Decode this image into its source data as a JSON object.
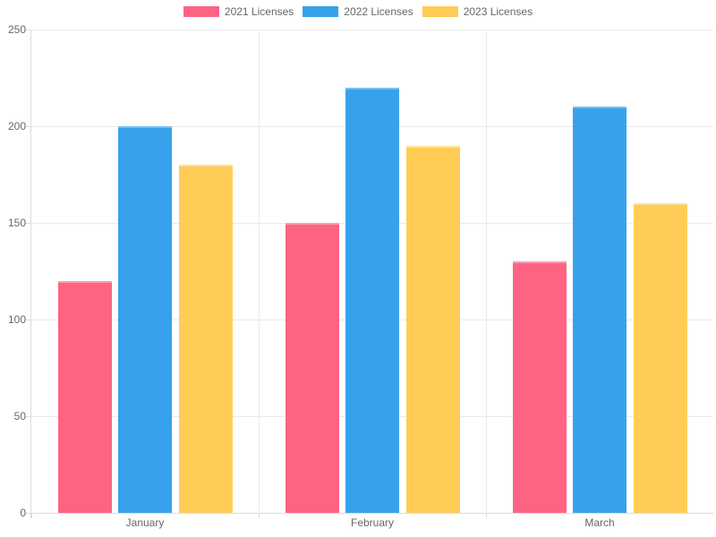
{
  "chart_data": {
    "type": "bar",
    "title": "",
    "xlabel": "",
    "ylabel": "",
    "categories": [
      "January",
      "February",
      "March"
    ],
    "series": [
      {
        "name": "2021 Licenses",
        "color": "#FF6384",
        "border_color": "#ff9db2",
        "values": [
          120,
          150,
          130
        ]
      },
      {
        "name": "2022 Licenses",
        "color": "#36A2EB",
        "border_color": "#79c0f1",
        "values": [
          200,
          220,
          210
        ]
      },
      {
        "name": "2023 Licenses",
        "color": "#FFCD56",
        "border_color": "#ffe19c",
        "values": [
          180,
          190,
          160
        ]
      }
    ],
    "ylim": [
      0,
      250
    ],
    "yticks": [
      0,
      50,
      100,
      150,
      200,
      250
    ],
    "grid": true,
    "legend_position": "top",
    "colors": {
      "axis_text": "#666666",
      "gridline": "#e9e9e9",
      "axis_line": "#dcdcdc",
      "background": "#ffffff"
    }
  }
}
